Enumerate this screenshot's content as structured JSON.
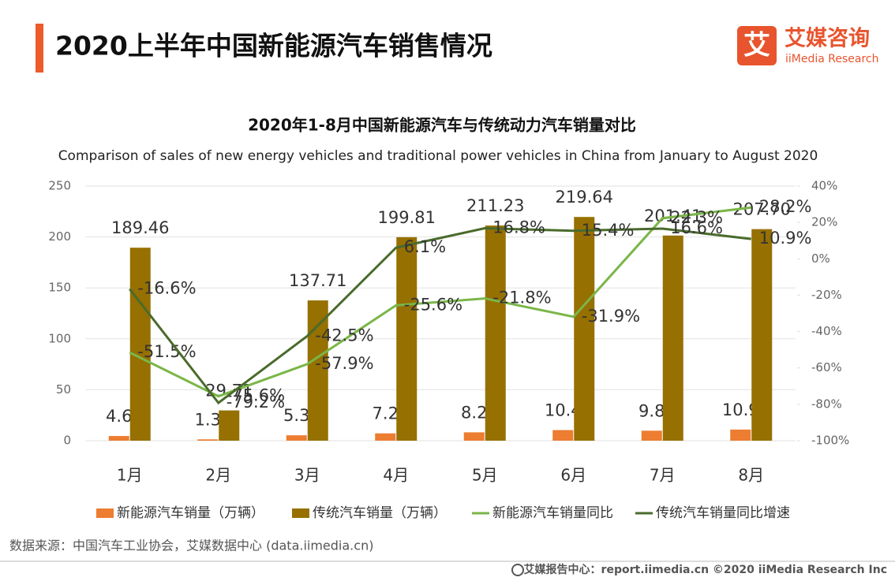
{
  "header": {
    "title": "2020上半年中国新能源汽车销售情况",
    "logo_name": "艾媒咨询",
    "logo_sub": "iiMedia Research",
    "logo_icon": "艾"
  },
  "source": "数据来源：中国汽车工业协会，艾媒数据中心 (data.iimedia.cn)",
  "footer": "艾媒报告中心：report.iimedia.cn  ©2020  iiMedia Research  Inc",
  "chart_data": {
    "type": "combo",
    "title": "2020年1-8月中国新能源汽车与传统动力汽车销量对比",
    "subtitle": "Comparison of sales of new energy vehicles and traditional power vehicles in China from January to August 2020",
    "categories": [
      "1月",
      "2月",
      "3月",
      "4月",
      "5月",
      "6月",
      "7月",
      "8月"
    ],
    "ylim": [
      0,
      250
    ],
    "yticks": [
      0,
      50,
      100,
      150,
      200,
      250
    ],
    "y2lim": [
      -100,
      40
    ],
    "y2ticks": [
      {
        "value": -100,
        "label": "-100%"
      },
      {
        "value": -80,
        "label": "-80%"
      },
      {
        "value": -60,
        "label": "-60%"
      },
      {
        "value": -40,
        "label": "-40%"
      },
      {
        "value": -20,
        "label": "-20%"
      },
      {
        "value": 0,
        "label": "0%"
      },
      {
        "value": 20,
        "label": "20%"
      },
      {
        "value": 40,
        "label": "40%"
      }
    ],
    "grid": true,
    "series": [
      {
        "name": "新能源汽车销量（万辆）",
        "type": "bar",
        "color": "#ed7d31",
        "values": [
          4.6,
          1.3,
          5.3,
          7.2,
          8.2,
          10.4,
          9.8,
          10.9
        ]
      },
      {
        "name": "传统汽车销量（万辆）",
        "type": "bar",
        "color": "#967000",
        "values": [
          189.46,
          29.71,
          137.71,
          199.81,
          211.23,
          219.64,
          201.41,
          207.7
        ],
        "value_labels": [
          "189.46",
          "29.71",
          "137.71",
          "199.81",
          "211.23",
          "219.64",
          "201.41",
          "207.70"
        ]
      },
      {
        "name": "新能源汽车销量同比",
        "type": "line",
        "axis": "y2",
        "color": "#7ab648",
        "values": [
          -51.5,
          -75.6,
          -57.9,
          -25.6,
          -21.8,
          -31.9,
          22.3,
          28.2
        ],
        "value_labels": [
          "-51.5%",
          "-75.6%",
          "-57.9%",
          "-25.6%",
          "-21.8%",
          "-31.9%",
          "22.3%",
          "28.2%"
        ]
      },
      {
        "name": "传统汽车销量同比增速",
        "type": "line",
        "axis": "y2",
        "color": "#4a6b2c",
        "values": [
          -16.6,
          -79.2,
          -42.5,
          6.1,
          16.8,
          15.4,
          16.6,
          10.9
        ],
        "value_labels": [
          "-16.6%",
          "-79.2%",
          "-42.5%",
          "6.1%",
          "16.8%",
          "15.4%",
          "16.6%",
          "10.9%"
        ]
      }
    ]
  }
}
